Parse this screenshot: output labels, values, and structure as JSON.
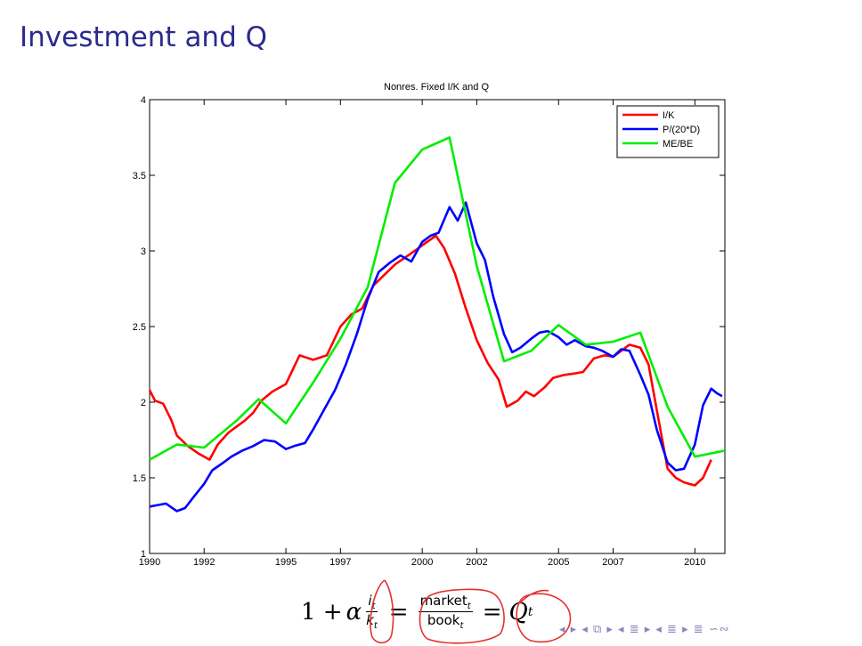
{
  "slide": {
    "title": "Investment and Q"
  },
  "equation": {
    "one_plus": "1 +",
    "alpha": "α",
    "frac1_num": "i",
    "frac1_num_sub": "t",
    "frac1_den": "k",
    "frac1_den_sub": "t",
    "equals1": "=",
    "frac2_num": "market",
    "frac2_num_sub": "t",
    "frac2_den": "book",
    "frac2_den_sub": "t",
    "equals2": "=",
    "q": "Q",
    "q_sub": "t"
  },
  "nav_symbols": "◂ ▸ ◂ ⧉ ▸ ◂ ≣ ▸ ◂ ≣ ▸   ≣   ∽∾",
  "chart_data": {
    "type": "line",
    "title": "Nonres. Fixed I/K and Q",
    "xlabel": "",
    "ylabel": "",
    "xlim": [
      1990,
      2011.1
    ],
    "ylim": [
      1,
      4
    ],
    "xticks": [
      1990,
      1992,
      1995,
      1997,
      2000,
      2002,
      2005,
      2007,
      2010
    ],
    "xtick_labels": [
      "1990",
      "1992",
      "1995",
      "1997",
      "2000",
      "2002",
      "2005",
      "2007",
      "2010"
    ],
    "yticks": [
      1,
      1.5,
      2,
      2.5,
      3,
      3.5,
      4
    ],
    "ytick_labels": [
      "1",
      "1.5",
      "2",
      "2.5",
      "3",
      "3.5",
      "4"
    ],
    "grid": false,
    "legend": "top-right",
    "series": [
      {
        "name": "I/K",
        "color": "#ff0000",
        "x": [
          1990,
          1990.2,
          1990.5,
          1990.8,
          1991.0,
          1991.4,
          1991.8,
          1992.2,
          1992.5,
          1992.9,
          1993.2,
          1993.5,
          1993.8,
          1994.1,
          1994.5,
          1995.0,
          1995.5,
          1996.0,
          1996.5,
          1997.0,
          1997.4,
          1997.8,
          1998.2,
          1998.6,
          1999.0,
          1999.4,
          1999.8,
          2000.1,
          2000.5,
          2000.8,
          2001.2,
          2001.6,
          2002.0,
          2002.4,
          2002.8,
          2003.1,
          2003.5,
          2003.8,
          2004.1,
          2004.5,
          2004.8,
          2005.2,
          2005.6,
          2005.9,
          2006.3,
          2006.7,
          2007.0,
          2007.3,
          2007.6,
          2008.0,
          2008.3,
          2008.6,
          2009.0,
          2009.3,
          2009.6,
          2010.0,
          2010.3,
          2010.6
        ],
        "values": [
          2.08,
          2.01,
          1.99,
          1.88,
          1.78,
          1.71,
          1.66,
          1.62,
          1.72,
          1.8,
          1.84,
          1.88,
          1.93,
          2.01,
          2.07,
          2.12,
          2.31,
          2.28,
          2.31,
          2.5,
          2.58,
          2.62,
          2.77,
          2.84,
          2.91,
          2.96,
          3.01,
          3.05,
          3.1,
          3.02,
          2.85,
          2.62,
          2.41,
          2.26,
          2.15,
          1.97,
          2.01,
          2.07,
          2.04,
          2.1,
          2.16,
          2.18,
          2.19,
          2.2,
          2.29,
          2.31,
          2.3,
          2.34,
          2.38,
          2.36,
          2.25,
          1.95,
          1.56,
          1.5,
          1.47,
          1.45,
          1.5,
          1.62
        ]
      },
      {
        "name": "P/(20*D)",
        "color": "#0000ff",
        "x": [
          1990,
          1990.3,
          1990.6,
          1991.0,
          1991.3,
          1991.6,
          1992.0,
          1992.3,
          1992.7,
          1993.0,
          1993.4,
          1993.8,
          1994.2,
          1994.6,
          1995.0,
          1995.3,
          1995.7,
          1996.0,
          1996.4,
          1996.8,
          1997.2,
          1997.6,
          1998.0,
          1998.4,
          1998.8,
          1999.2,
          1999.6,
          2000.0,
          2000.3,
          2000.6,
          2001.0,
          2001.3,
          2001.6,
          2002.0,
          2002.3,
          2002.6,
          2003.0,
          2003.3,
          2003.6,
          2004.0,
          2004.3,
          2004.6,
          2005.0,
          2005.3,
          2005.6,
          2006.0,
          2006.3,
          2006.6,
          2007.0,
          2007.3,
          2007.6,
          2008.0,
          2008.3,
          2008.6,
          2009.0,
          2009.3,
          2009.6,
          2010.0,
          2010.3,
          2010.6,
          2010.8,
          2011.0
        ],
        "values": [
          1.31,
          1.32,
          1.33,
          1.28,
          1.3,
          1.37,
          1.46,
          1.55,
          1.6,
          1.64,
          1.68,
          1.71,
          1.75,
          1.74,
          1.69,
          1.71,
          1.73,
          1.82,
          1.95,
          2.08,
          2.25,
          2.45,
          2.68,
          2.86,
          2.92,
          2.97,
          2.93,
          3.06,
          3.1,
          3.12,
          3.29,
          3.2,
          3.32,
          3.05,
          2.94,
          2.7,
          2.45,
          2.33,
          2.36,
          2.42,
          2.46,
          2.47,
          2.43,
          2.38,
          2.41,
          2.37,
          2.36,
          2.34,
          2.3,
          2.35,
          2.34,
          2.18,
          2.05,
          1.82,
          1.6,
          1.55,
          1.56,
          1.72,
          1.98,
          2.09,
          2.06,
          2.04
        ]
      },
      {
        "name": "ME/BE",
        "color": "#00ee00",
        "x": [
          1990,
          1991.0,
          1992.0,
          1993.2,
          1994.0,
          1995.0,
          1996.0,
          1997.0,
          1998.0,
          1999.0,
          2000.0,
          2001.0,
          2002.0,
          2003.0,
          2004.0,
          2005.0,
          2006.0,
          2007.0,
          2008.0,
          2009.0,
          2010.0,
          2011.1
        ],
        "values": [
          1.62,
          1.72,
          1.7,
          1.88,
          2.02,
          1.86,
          2.13,
          2.42,
          2.76,
          3.45,
          3.67,
          3.75,
          2.9,
          2.27,
          2.34,
          2.51,
          2.38,
          2.4,
          2.46,
          1.97,
          1.64,
          1.68
        ]
      }
    ]
  }
}
